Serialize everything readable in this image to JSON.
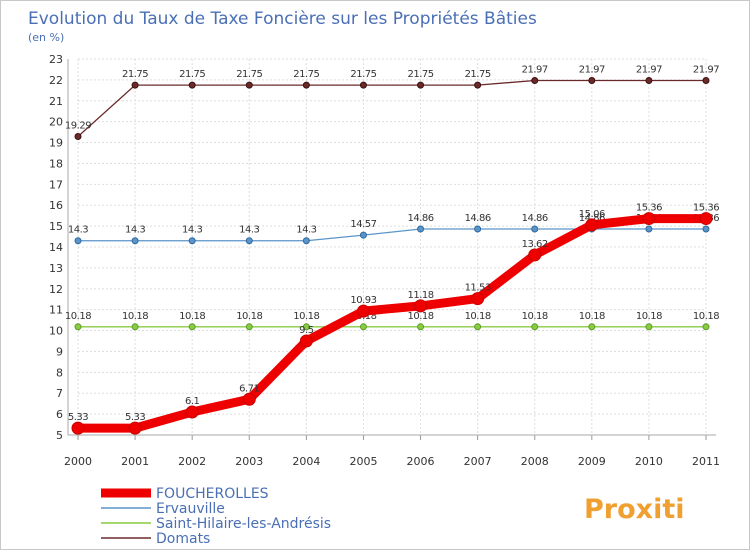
{
  "chart_data": {
    "type": "line",
    "title": "Evolution du Taux de Taxe Foncière sur les Propriétés Bâties",
    "ylabel": "(en %)",
    "xlabel": "",
    "ylim": [
      5,
      23
    ],
    "yticks": [
      "5",
      "6",
      "7",
      "8",
      "9",
      "10",
      "11",
      "12",
      "13",
      "14",
      "15",
      "16",
      "17",
      "18",
      "19",
      "20",
      "21",
      "22",
      "23"
    ],
    "x": [
      "2000",
      "2001",
      "2002",
      "2003",
      "2004",
      "2005",
      "2006",
      "2007",
      "2008",
      "2009",
      "2010",
      "2011"
    ],
    "grid": true,
    "legend_position": "bottom-left",
    "series": [
      {
        "name": "FOUCHEROLLES",
        "color": "#ee0000",
        "values": [
          5.33,
          5.33,
          6.1,
          6.71,
          9.5,
          10.93,
          11.18,
          11.53,
          13.62,
          15.06,
          15.36,
          15.36
        ],
        "labels": [
          "5.33",
          "5.33",
          "6.1",
          "6.71",
          "9.5",
          "10.93",
          "11.18",
          "11.53",
          "13.62",
          "15.06",
          "15.36",
          "15.36"
        ]
      },
      {
        "name": "Ervauville",
        "color": "#5b94c8",
        "values": [
          14.3,
          14.3,
          14.3,
          14.3,
          14.3,
          14.57,
          14.86,
          14.86,
          14.86,
          14.86,
          14.86,
          14.86
        ],
        "labels": [
          "14.3",
          "14.3",
          "14.3",
          "14.3",
          "14.3",
          "14.57",
          "14.86",
          "14.86",
          "14.86",
          "14.86",
          "14.86",
          "14.86"
        ]
      },
      {
        "name": "Saint-Hilaire-les-Andrésis",
        "color": "#88cc44",
        "values": [
          10.18,
          10.18,
          10.18,
          10.18,
          10.18,
          10.18,
          10.18,
          10.18,
          10.18,
          10.18,
          10.18,
          10.18
        ],
        "labels": [
          "10.18",
          "10.18",
          "10.18",
          "10.18",
          "10.18",
          "10.18",
          "10.18",
          "10.18",
          "10.18",
          "10.18",
          "10.18",
          "10.18"
        ]
      },
      {
        "name": "Domats",
        "color": "#6b2a2a",
        "values": [
          19.29,
          21.75,
          21.75,
          21.75,
          21.75,
          21.75,
          21.75,
          21.75,
          21.97,
          21.97,
          21.97,
          21.97
        ],
        "labels": [
          "19.29",
          "21.75",
          "21.75",
          "21.75",
          "21.75",
          "21.75",
          "21.75",
          "21.75",
          "21.97",
          "21.97",
          "21.97",
          "21.97"
        ]
      }
    ]
  },
  "logo": {
    "text": "Proxiti"
  }
}
